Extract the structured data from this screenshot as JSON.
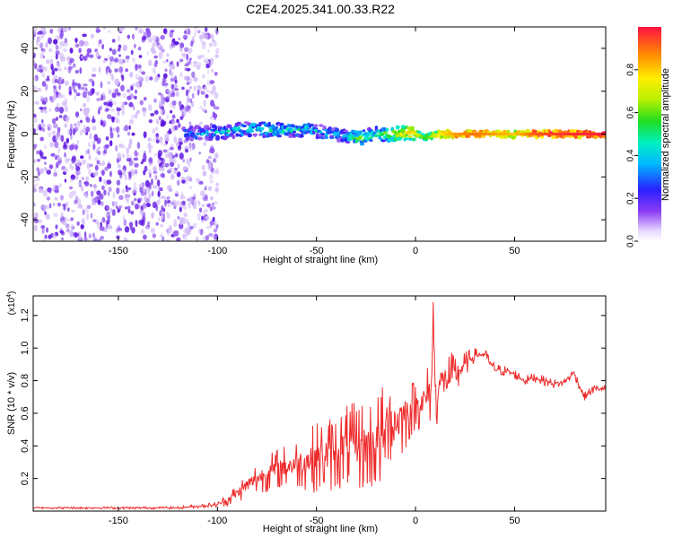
{
  "title": "C2E4.2025.341.00.33.R22",
  "colors": {
    "trace": "#ee2a2a",
    "scatter_dark": "#5a10e0",
    "scatter_mid": "#8a4cf0",
    "scatter_light": "#d4bdf8",
    "axis": "#000000",
    "background": "#ffffff"
  },
  "chart_data": [
    {
      "type": "heatmap",
      "name": "spectrogram",
      "xlabel": "Height of straight line (km)",
      "ylabel": "Frequency (Hz)",
      "xlim": [
        -193,
        96
      ],
      "ylim": [
        -50,
        50
      ],
      "xticks": [
        -150,
        -100,
        -50,
        0,
        50
      ],
      "xtick_labels": [
        "-150",
        "-100",
        "-50",
        "0",
        "50"
      ],
      "yticks": [
        -40,
        -20,
        0,
        20,
        40
      ],
      "ytick_labels": [
        "-40",
        "-20",
        "0",
        "20",
        "40"
      ],
      "noise_region_km": [
        -193,
        -100
      ],
      "signal_start_km": -117,
      "ridge": [
        {
          "x": -115,
          "y": 0.0,
          "a": 0.35
        },
        {
          "x": -105,
          "y": 0.5,
          "a": 0.35
        },
        {
          "x": -95,
          "y": 1.0,
          "a": 0.4
        },
        {
          "x": -85,
          "y": 2.5,
          "a": 0.45
        },
        {
          "x": -75,
          "y": 2.0,
          "a": 0.45
        },
        {
          "x": -65,
          "y": 1.5,
          "a": 0.45
        },
        {
          "x": -55,
          "y": 2.5,
          "a": 0.4
        },
        {
          "x": -45,
          "y": 0.5,
          "a": 0.4
        },
        {
          "x": -35,
          "y": -1.0,
          "a": 0.4
        },
        {
          "x": -28,
          "y": -2.0,
          "a": 0.6
        },
        {
          "x": -20,
          "y": 0.0,
          "a": 0.45
        },
        {
          "x": -10,
          "y": 0.0,
          "a": 0.7
        },
        {
          "x": -2,
          "y": 1.0,
          "a": 0.8
        },
        {
          "x": 5,
          "y": -2.0,
          "a": 0.55
        },
        {
          "x": 12,
          "y": 0.0,
          "a": 0.75
        },
        {
          "x": 20,
          "y": 0.0,
          "a": 0.85
        },
        {
          "x": 30,
          "y": 0.0,
          "a": 0.9
        },
        {
          "x": 40,
          "y": 0.0,
          "a": 0.85
        },
        {
          "x": 50,
          "y": 0.0,
          "a": 0.8
        },
        {
          "x": 60,
          "y": 0.0,
          "a": 0.92
        },
        {
          "x": 70,
          "y": 0.0,
          "a": 0.95
        },
        {
          "x": 80,
          "y": 0.0,
          "a": 0.97
        },
        {
          "x": 96,
          "y": 0.0,
          "a": 0.98
        }
      ],
      "colorbar": {
        "label": "Normalized spectral amplitude",
        "range": [
          0,
          1
        ],
        "ticks": [
          0.0,
          0.2,
          0.4,
          0.6,
          0.8
        ],
        "tick_labels": [
          "0.0",
          "0.2",
          "0.4",
          "0.6",
          "0.8"
        ]
      }
    },
    {
      "type": "line",
      "name": "snr",
      "xlabel": "Height of straight line (km)",
      "ylabel": "SNR (10 * v/v)",
      "y_multiplier_base": "(x10",
      "y_multiplier_exp": "4",
      "y_multiplier_close": ")",
      "xlim": [
        -193,
        96
      ],
      "ylim": [
        0.0,
        1.32
      ],
      "xticks": [
        -150,
        -100,
        -50,
        0,
        50
      ],
      "xtick_labels": [
        "-150",
        "-100",
        "-50",
        "0",
        "50"
      ],
      "yticks": [
        0.2,
        0.4,
        0.6,
        0.8,
        1.0,
        1.2
      ],
      "ytick_labels": [
        "0.2",
        "0.4",
        "0.6",
        "0.8",
        "1.0",
        "1.2"
      ],
      "series": [
        {
          "name": "SNR",
          "x": [
            -193,
            -150,
            -120,
            -110,
            -100,
            -95,
            -90,
            -85,
            -80,
            -70,
            -60,
            -50,
            -40,
            -35,
            -30,
            -25,
            -20,
            -15,
            -13,
            -12,
            -10,
            -5,
            0,
            5,
            8,
            9,
            10,
            12,
            15,
            20,
            25,
            30,
            35,
            38,
            40,
            45,
            50,
            55,
            60,
            65,
            70,
            75,
            80,
            85,
            90,
            96
          ],
          "y": [
            0.02,
            0.02,
            0.02,
            0.03,
            0.04,
            0.07,
            0.11,
            0.16,
            0.2,
            0.26,
            0.29,
            0.33,
            0.36,
            0.4,
            0.4,
            0.4,
            0.42,
            0.45,
            0.72,
            0.5,
            0.55,
            0.6,
            0.65,
            0.68,
            0.75,
            1.25,
            0.7,
            0.78,
            0.8,
            0.83,
            0.9,
            0.96,
            0.96,
            0.9,
            0.87,
            0.86,
            0.84,
            0.8,
            0.82,
            0.8,
            0.78,
            0.79,
            0.85,
            0.7,
            0.75,
            0.75
          ]
        }
      ],
      "spike_amplitude": [
        {
          "x": -193,
          "a": 0.006
        },
        {
          "x": -120,
          "a": 0.008
        },
        {
          "x": -100,
          "a": 0.015
        },
        {
          "x": -95,
          "a": 0.04
        },
        {
          "x": -80,
          "a": 0.1
        },
        {
          "x": -60,
          "a": 0.15
        },
        {
          "x": -50,
          "a": 0.22
        },
        {
          "x": -40,
          "a": 0.24
        },
        {
          "x": -30,
          "a": 0.27
        },
        {
          "x": -20,
          "a": 0.3
        },
        {
          "x": -15,
          "a": 0.35
        },
        {
          "x": -10,
          "a": 0.3
        },
        {
          "x": 0,
          "a": 0.15
        },
        {
          "x": 10,
          "a": 0.22
        },
        {
          "x": 20,
          "a": 0.14
        },
        {
          "x": 25,
          "a": 0.08
        },
        {
          "x": 30,
          "a": 0.04
        },
        {
          "x": 50,
          "a": 0.03
        },
        {
          "x": 96,
          "a": 0.025
        }
      ]
    }
  ]
}
